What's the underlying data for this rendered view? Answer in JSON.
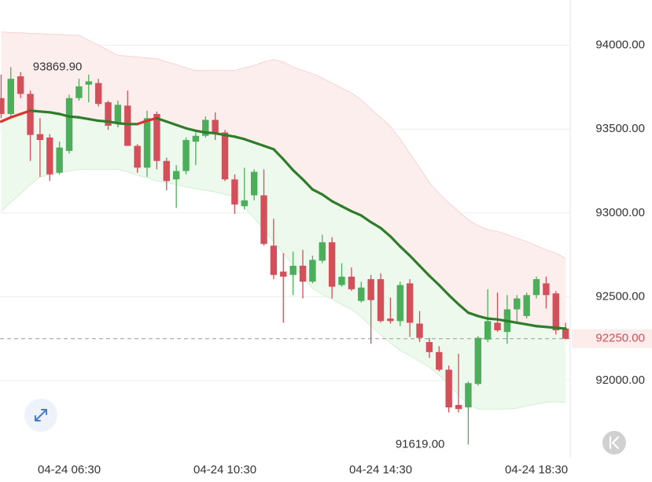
{
  "chart_data": {
    "type": "candlestick",
    "categories": [
      null,
      null,
      null,
      null,
      null,
      null,
      null,
      "04-24 06:30",
      null,
      null,
      null,
      null,
      null,
      null,
      null,
      null,
      null,
      null,
      null,
      null,
      null,
      null,
      null,
      "04-24 10:30",
      null,
      null,
      null,
      null,
      null,
      null,
      null,
      null,
      null,
      null,
      null,
      null,
      null,
      null,
      null,
      "04-24 14:30",
      null,
      null,
      null,
      null,
      null,
      null,
      null,
      null,
      null,
      null,
      null,
      null,
      null,
      null,
      null,
      "04-24 18:30",
      null,
      null,
      null
    ],
    "open": [
      93685,
      93590,
      93815,
      93710,
      93470,
      93450,
      93240,
      93370,
      93685,
      93765,
      93775,
      93660,
      93535,
      93640,
      93400,
      93270,
      93590,
      93310,
      93200,
      93250,
      93425,
      93460,
      93555,
      93480,
      93200,
      93040,
      93105,
      93105,
      92805,
      92650,
      92630,
      92685,
      92590,
      92715,
      92825,
      92570,
      92620,
      92475,
      92605,
      92605,
      92370,
      92355,
      92580,
      92340,
      92230,
      92170,
      92065,
      91855,
      91840,
      91980,
      92245,
      92345,
      92290,
      92425,
      92385,
      92510,
      92580,
      92520,
      92310
    ],
    "high": [
      93825,
      93869.9,
      93840,
      93730,
      93565,
      93470,
      93425,
      93705,
      93800,
      93825,
      93800,
      93670,
      93670,
      93730,
      93410,
      93610,
      93605,
      93330,
      93285,
      93450,
      93480,
      93575,
      93600,
      93495,
      93230,
      93270,
      93260,
      93260,
      92965,
      92760,
      92770,
      92780,
      92745,
      92870,
      92855,
      92700,
      92675,
      92590,
      92630,
      92640,
      92495,
      92590,
      92605,
      92415,
      92255,
      92205,
      92090,
      92160,
      91995,
      92265,
      92545,
      92525,
      92510,
      92510,
      92525,
      92620,
      92620,
      92535,
      92345
    ],
    "low": [
      93565,
      93565,
      93685,
      93310,
      93215,
      93190,
      93230,
      93355,
      93670,
      93660,
      93635,
      93495,
      93510,
      93400,
      93240,
      93215,
      93260,
      93135,
      93030,
      93230,
      93285,
      93450,
      93435,
      93190,
      92995,
      93020,
      93075,
      92805,
      92605,
      92345,
      92510,
      92490,
      92580,
      92700,
      92490,
      92560,
      92535,
      92465,
      92220,
      92345,
      92340,
      92325,
      92260,
      92230,
      92135,
      92055,
      91810,
      91810,
      91619,
      91970,
      92230,
      92290,
      92220,
      92345,
      92370,
      92490,
      92430,
      92275,
      92245
    ],
    "close": [
      93590,
      93800,
      93710,
      93465,
      93435,
      93230,
      93390,
      93685,
      93755,
      93785,
      93650,
      93520,
      93645,
      93400,
      93270,
      93565,
      93310,
      93190,
      93250,
      93435,
      93460,
      93555,
      93480,
      93200,
      93050,
      93075,
      93245,
      92815,
      92630,
      92620,
      92685,
      92590,
      92720,
      92825,
      92560,
      92620,
      92545,
      92555,
      92480,
      92355,
      92355,
      92570,
      92345,
      92255,
      92170,
      92065,
      91840,
      91830,
      91985,
      92255,
      92355,
      92300,
      92425,
      92490,
      92510,
      92605,
      92510,
      92300,
      92250
    ],
    "up_color": "#4cae5a",
    "down_color": "#d3505a",
    "ma": {
      "color": "#2f7d2a",
      "rise_color": "#d8332e",
      "values": [
        93545,
        93570,
        93590,
        93610,
        93605,
        93600,
        93590,
        93575,
        93570,
        93560,
        93550,
        93545,
        93535,
        93530,
        93530,
        93550,
        93565,
        93545,
        93525,
        93505,
        93490,
        93480,
        93475,
        93465,
        93455,
        93440,
        93420,
        93400,
        93380,
        93320,
        93255,
        93200,
        93140,
        93110,
        93070,
        93040,
        93010,
        92985,
        92945,
        92910,
        92860,
        92800,
        92745,
        92685,
        92625,
        92570,
        92510,
        92455,
        92405,
        92385,
        92370,
        92365,
        92355,
        92345,
        92335,
        92325,
        92320,
        92315,
        92310
      ]
    },
    "bands": {
      "upper": [
        94080,
        94075,
        94075,
        94070,
        94070,
        94065,
        94065,
        94060,
        94060,
        94030,
        94000,
        93970,
        93940,
        93935,
        93930,
        93925,
        93920,
        93900,
        93885,
        93865,
        93850,
        93850,
        93850,
        93850,
        93850,
        93865,
        93880,
        93900,
        93915,
        93900,
        93870,
        93850,
        93830,
        93805,
        93775,
        93745,
        93715,
        93675,
        93620,
        93570,
        93515,
        93440,
        93355,
        93270,
        93180,
        93115,
        93060,
        93010,
        92960,
        92925,
        92900,
        92890,
        92870,
        92850,
        92830,
        92805,
        92780,
        92760,
        92730
      ],
      "lower": [
        93010,
        93065,
        93115,
        93170,
        93215,
        93225,
        93240,
        93250,
        93260,
        93260,
        93260,
        93260,
        93260,
        93245,
        93225,
        93210,
        93190,
        93180,
        93170,
        93155,
        93145,
        93135,
        93125,
        93110,
        93100,
        93035,
        92970,
        92900,
        92830,
        92760,
        92690,
        92620,
        92550,
        92515,
        92485,
        92455,
        92425,
        92380,
        92325,
        92275,
        92225,
        92180,
        92150,
        92115,
        92080,
        92035,
        91975,
        91915,
        91860,
        91830,
        91830,
        91830,
        91830,
        91835,
        91850,
        91860,
        91870,
        91875,
        91870
      ]
    },
    "max_label": "93869.90",
    "min_label": "91619.00",
    "last_price": {
      "value": 92250,
      "label": "92250.00"
    },
    "ylim": [
      91550,
      94270
    ],
    "yticks": [
      {
        "value": 92000,
        "label": "92000.00"
      },
      {
        "value": 92500,
        "label": "92500.00"
      },
      {
        "value": 93000,
        "label": "93000.00"
      },
      {
        "value": 93500,
        "label": "93500.00"
      },
      {
        "value": 94000,
        "label": "94000.00"
      }
    ],
    "grid": true
  }
}
